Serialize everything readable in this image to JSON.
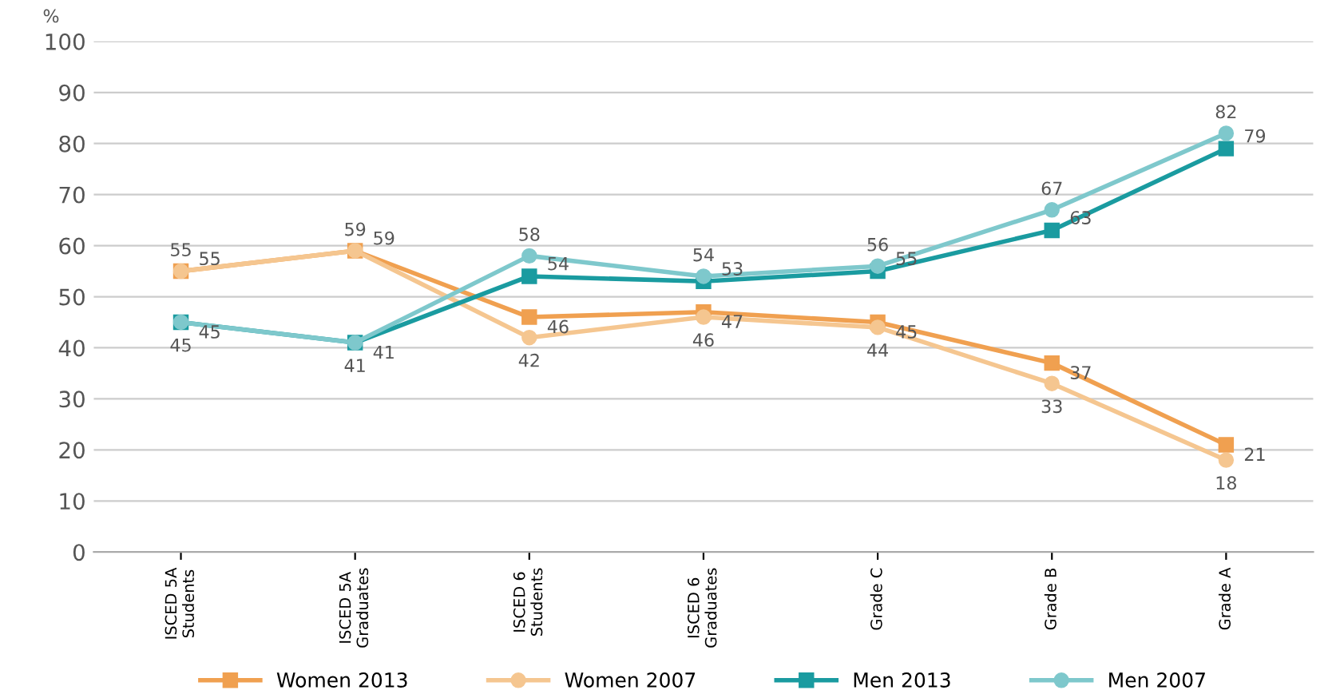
{
  "chart_data": {
    "type": "line",
    "ylabel": "%",
    "categories": [
      "ISCED 5A\nStudents",
      "ISCED 5A\nGraduates",
      "ISCED 6\nStudents",
      "ISCED 6\nGraduates",
      "Grade C",
      "Grade B",
      "Grade A"
    ],
    "series": [
      {
        "name": "Women 2013",
        "color": "#f0a050",
        "marker": "square",
        "values": [
          55,
          59,
          46,
          47,
          45,
          37,
          21
        ]
      },
      {
        "name": "Women 2007",
        "color": "#f5c690",
        "marker": "circle",
        "values": [
          55,
          59,
          42,
          46,
          44,
          33,
          18
        ]
      },
      {
        "name": "Men 2013",
        "color": "#1a9ba0",
        "marker": "square",
        "values": [
          45,
          41,
          54,
          53,
          55,
          63,
          79
        ]
      },
      {
        "name": "Men 2007",
        "color": "#7ec8cc",
        "marker": "circle",
        "values": [
          45,
          41,
          58,
          54,
          56,
          67,
          82
        ]
      }
    ],
    "ylim": [
      0,
      100
    ],
    "yticks": [
      0,
      10,
      20,
      30,
      40,
      50,
      60,
      70,
      80,
      90,
      100
    ],
    "grid": "y",
    "legend": "bottom",
    "data_labels": true,
    "line_style": "solid"
  }
}
